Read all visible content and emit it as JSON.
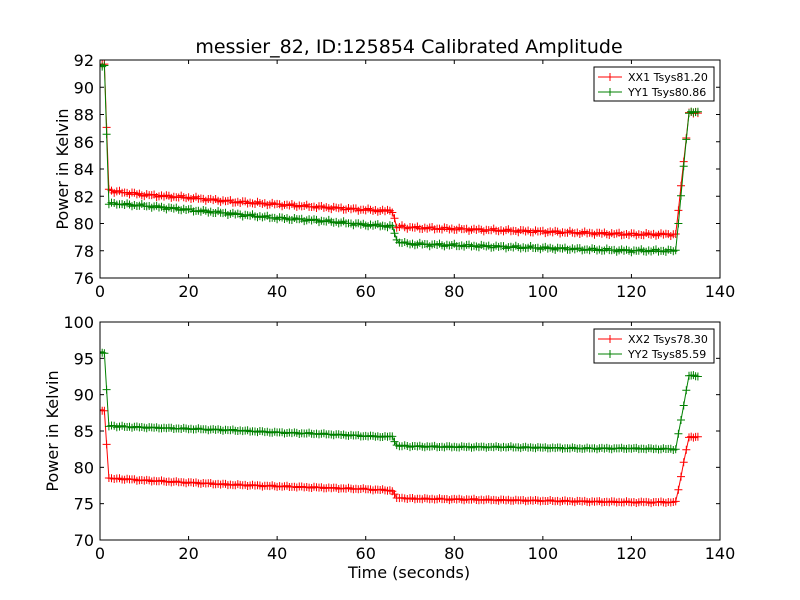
{
  "figure": {
    "title": "messier_82, ID:125854 Calibrated Amplitude",
    "xlabel": "Time (seconds)"
  },
  "chart_data": [
    {
      "type": "line",
      "title": "messier_82, ID:125854 Calibrated Amplitude",
      "xlabel": "",
      "ylabel": "Power in Kelvin",
      "xlim": [
        0,
        140
      ],
      "ylim": [
        76,
        92
      ],
      "xticks": [
        "0",
        "20",
        "40",
        "60",
        "80",
        "100",
        "120",
        "140"
      ],
      "yticks": [
        "76",
        "78",
        "80",
        "82",
        "84",
        "86",
        "88",
        "90",
        "92"
      ],
      "grid": false,
      "legend": "top-right",
      "marker": "+",
      "series": [
        {
          "name": "XX1 Tsys81.20",
          "color": "#ff0000",
          "x": [
            0,
            1,
            2,
            5,
            10,
            20,
            30,
            40,
            50,
            60,
            66,
            67,
            70,
            80,
            90,
            100,
            110,
            120,
            130,
            133,
            134,
            135
          ],
          "y": [
            91.7,
            91.7,
            82.4,
            82.3,
            82.1,
            81.9,
            81.6,
            81.4,
            81.2,
            81.0,
            80.9,
            79.8,
            79.7,
            79.6,
            79.5,
            79.4,
            79.3,
            79.2,
            79.2,
            88.1,
            88.1,
            88.1
          ]
        },
        {
          "name": "YY1 Tsys80.86",
          "color": "#008000",
          "x": [
            0,
            1,
            2,
            5,
            10,
            20,
            30,
            40,
            50,
            60,
            66,
            67,
            70,
            80,
            90,
            100,
            110,
            120,
            130,
            133,
            134,
            135
          ],
          "y": [
            91.6,
            91.6,
            81.5,
            81.4,
            81.3,
            81.0,
            80.7,
            80.4,
            80.2,
            79.9,
            79.8,
            78.7,
            78.5,
            78.4,
            78.3,
            78.2,
            78.1,
            78.0,
            78.0,
            88.2,
            88.2,
            88.2
          ]
        }
      ]
    },
    {
      "type": "line",
      "title": "",
      "xlabel": "Time (seconds)",
      "ylabel": "Power in Kelvin",
      "xlim": [
        0,
        140
      ],
      "ylim": [
        70,
        100
      ],
      "xticks": [
        "0",
        "20",
        "40",
        "60",
        "80",
        "100",
        "120",
        "140"
      ],
      "yticks": [
        "70",
        "75",
        "80",
        "85",
        "90",
        "95",
        "100"
      ],
      "grid": false,
      "legend": "top-right",
      "marker": "+",
      "series": [
        {
          "name": "XX2 Tsys78.30",
          "color": "#ff0000",
          "x": [
            0,
            1,
            2,
            5,
            10,
            20,
            30,
            40,
            50,
            60,
            66,
            67,
            70,
            80,
            90,
            100,
            110,
            120,
            130,
            133,
            134,
            135
          ],
          "y": [
            87.8,
            87.8,
            78.5,
            78.4,
            78.2,
            77.9,
            77.6,
            77.4,
            77.2,
            77.0,
            76.8,
            75.8,
            75.7,
            75.6,
            75.5,
            75.4,
            75.3,
            75.2,
            75.2,
            84.2,
            84.2,
            84.2
          ]
        },
        {
          "name": "YY2 Tsys85.59",
          "color": "#008000",
          "x": [
            0,
            1,
            2,
            5,
            10,
            20,
            30,
            40,
            50,
            60,
            66,
            67,
            70,
            80,
            90,
            100,
            110,
            120,
            130,
            133,
            134,
            135
          ],
          "y": [
            95.9,
            95.7,
            85.7,
            85.6,
            85.5,
            85.3,
            85.1,
            84.8,
            84.6,
            84.3,
            84.2,
            83.0,
            82.9,
            82.8,
            82.8,
            82.7,
            82.6,
            82.6,
            82.5,
            92.6,
            92.6,
            92.5
          ]
        }
      ]
    }
  ]
}
